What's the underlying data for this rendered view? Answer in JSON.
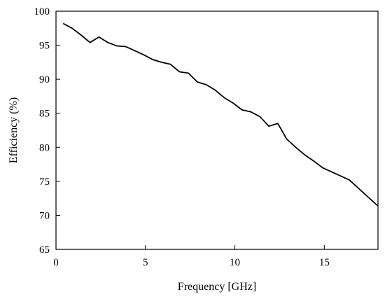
{
  "chart_data": {
    "type": "line",
    "title": "",
    "xlabel": "Frequency [GHz]",
    "ylabel": "Efficiency (%)",
    "xlim": [
      0,
      18
    ],
    "ylim": [
      65,
      100
    ],
    "xticks": [
      0,
      5,
      10,
      15
    ],
    "yticks": [
      65,
      70,
      75,
      80,
      85,
      90,
      95,
      100
    ],
    "grid": false,
    "legend": "none",
    "series": [
      {
        "color": "#000000",
        "x": [
          0.4,
          0.9,
          1.4,
          1.9,
          2.4,
          2.9,
          3.4,
          3.9,
          4.4,
          4.9,
          5.4,
          5.9,
          6.4,
          6.9,
          7.4,
          7.9,
          8.4,
          8.9,
          9.4,
          9.9,
          10.4,
          10.9,
          11.4,
          11.9,
          12.4,
          12.9,
          13.4,
          13.9,
          14.4,
          14.9,
          15.4,
          15.9,
          16.4,
          16.9,
          17.4,
          17.9,
          18.0
        ],
        "y": [
          98.2,
          97.5,
          96.5,
          95.4,
          96.2,
          95.4,
          94.9,
          94.8,
          94.2,
          93.6,
          92.9,
          92.5,
          92.2,
          91.1,
          90.9,
          89.6,
          89.2,
          88.4,
          87.3,
          86.5,
          85.5,
          85.2,
          84.5,
          83.1,
          83.5,
          81.2,
          80.0,
          78.9,
          78.0,
          77.0,
          76.4,
          75.8,
          75.2,
          74.0,
          72.8,
          71.6,
          71.4
        ]
      }
    ]
  }
}
